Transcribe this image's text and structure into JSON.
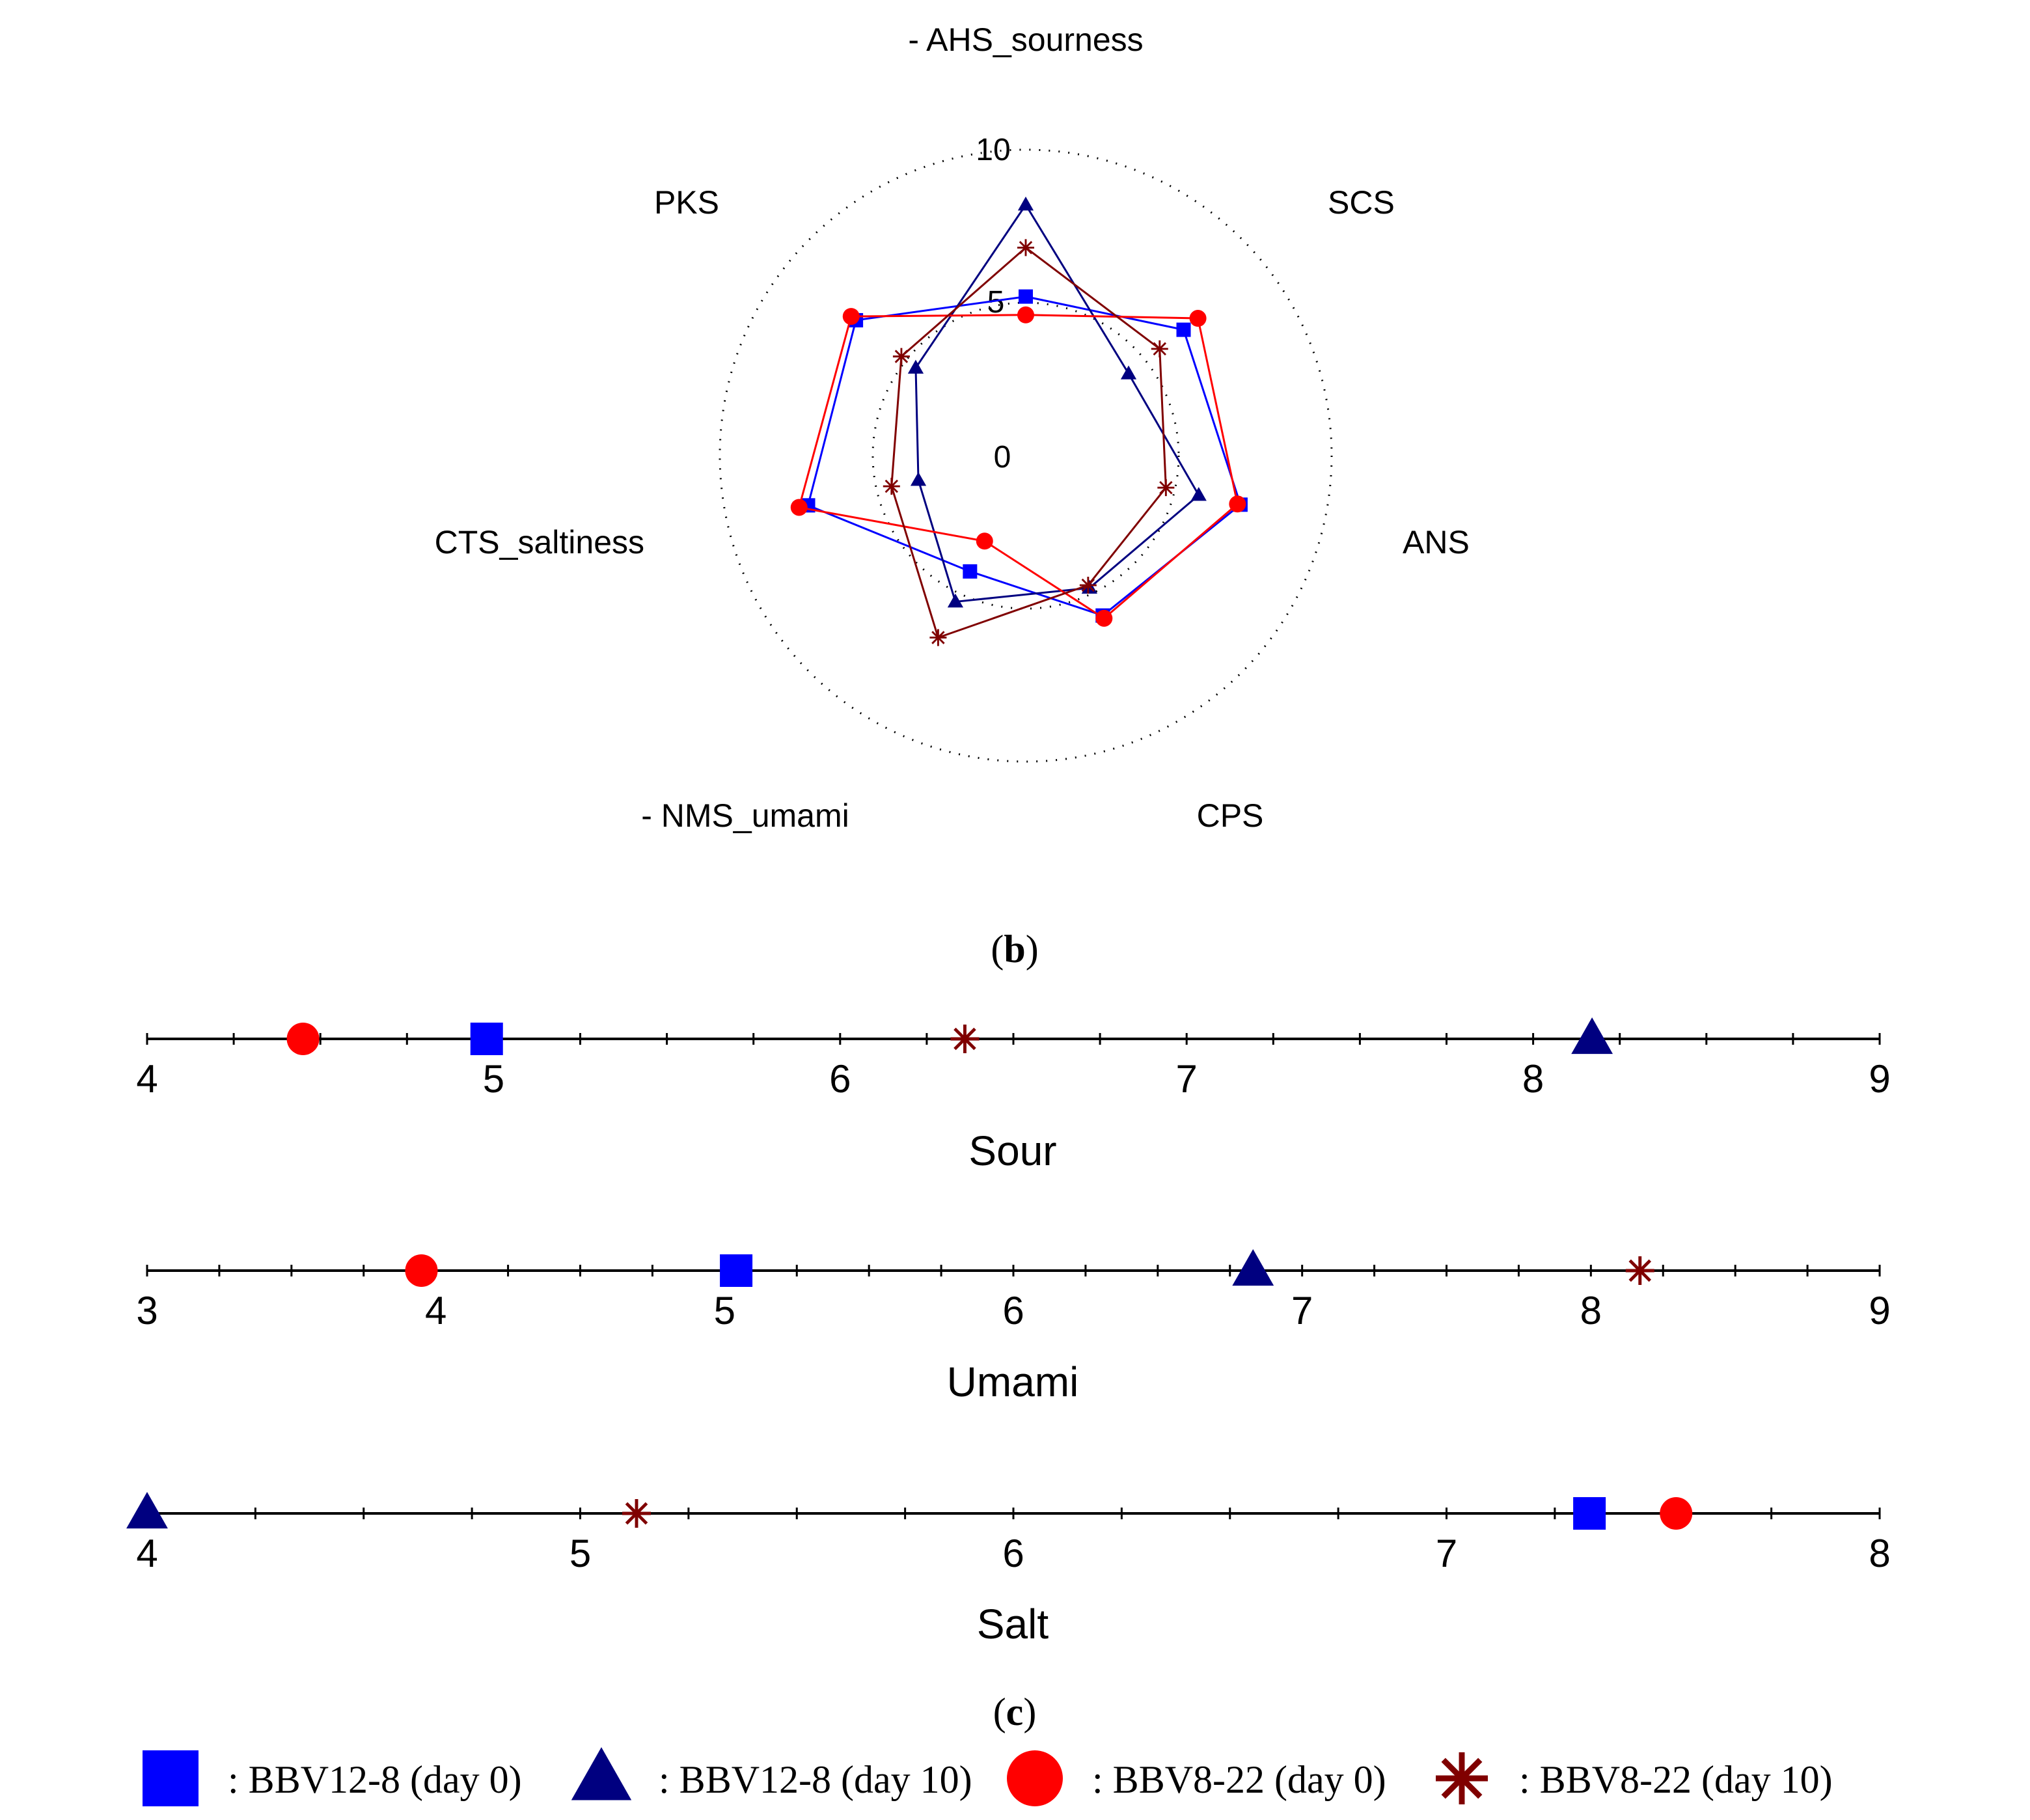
{
  "colors": {
    "bbv12_day0": "#0000ff",
    "bbv12_day10": "#000080",
    "bbv8_day0": "#ff0000",
    "bbv8_day10": "#800000",
    "axis": "#000000"
  },
  "panels": {
    "b_label": "b",
    "c_label": "c"
  },
  "legend": {
    "items": [
      {
        "series": "bbv12_day0",
        "marker": "square",
        "label": ": BBV12-8 (day 0)"
      },
      {
        "series": "bbv12_day10",
        "marker": "triangle",
        "label": ": BBV12-8 (day 10)"
      },
      {
        "series": "bbv8_day0",
        "marker": "circle",
        "label": ": BBV8-22 (day 0)"
      },
      {
        "series": "bbv8_day10",
        "marker": "star",
        "label": ": BBV8-22 (day 10)"
      }
    ]
  },
  "chart_data": [
    {
      "type": "radar",
      "panel": "b",
      "axes": [
        "- AHS_sourness",
        "SCS",
        "ANS",
        "CPS",
        "- NMS_umami",
        "CTS_saltiness",
        "PKS"
      ],
      "range": [
        0,
        10
      ],
      "ring_labels": [
        "0",
        "5",
        "10"
      ],
      "series": [
        {
          "key": "bbv12_day0",
          "name": "BBV12-8 (day 0)",
          "marker": "square",
          "values": [
            5.2,
            6.6,
            7.2,
            5.8,
            4.2,
            7.3,
            7.1
          ]
        },
        {
          "key": "bbv12_day10",
          "name": "BBV12-8 (day 10)",
          "marker": "triangle",
          "values": [
            8.2,
            4.3,
            5.8,
            4.8,
            5.3,
            3.6,
            4.6
          ]
        },
        {
          "key": "bbv8_day0",
          "name": "BBV8-22 (day 0)",
          "marker": "circle",
          "values": [
            4.6,
            7.2,
            7.1,
            5.9,
            3.1,
            7.6,
            7.3
          ]
        },
        {
          "key": "bbv8_day10",
          "name": "BBV8-22 (day 10)",
          "marker": "star",
          "values": [
            6.8,
            5.6,
            4.7,
            4.7,
            6.6,
            4.5,
            5.2
          ]
        }
      ]
    },
    {
      "type": "dot-scale",
      "panel": "c",
      "title": "Sour",
      "range": [
        4,
        9
      ],
      "ticks": [
        4,
        5,
        6,
        7,
        8,
        9
      ],
      "minor_step": 0.5,
      "points": [
        {
          "key": "bbv8_day0",
          "marker": "circle",
          "value": 4.45
        },
        {
          "key": "bbv12_day0",
          "marker": "square",
          "value": 4.98
        },
        {
          "key": "bbv8_day10",
          "marker": "star",
          "value": 6.36
        },
        {
          "key": "bbv12_day10",
          "marker": "triangle",
          "value": 8.17
        }
      ]
    },
    {
      "type": "dot-scale",
      "panel": "c",
      "title": "Umami",
      "range": [
        3,
        9
      ],
      "ticks": [
        3,
        4,
        5,
        6,
        7,
        8,
        9
      ],
      "minor_step": 0.5,
      "points": [
        {
          "key": "bbv8_day0",
          "marker": "circle",
          "value": 3.95
        },
        {
          "key": "bbv12_day0",
          "marker": "square",
          "value": 5.04
        },
        {
          "key": "bbv12_day10",
          "marker": "triangle",
          "value": 6.83
        },
        {
          "key": "bbv8_day10",
          "marker": "star",
          "value": 8.17
        }
      ]
    },
    {
      "type": "dot-scale",
      "panel": "c",
      "title": "Salt",
      "range": [
        4,
        8
      ],
      "ticks": [
        4,
        5,
        6,
        7,
        8
      ],
      "minor_step": 0.5,
      "points": [
        {
          "key": "bbv12_day10",
          "marker": "triangle",
          "value": 4.0
        },
        {
          "key": "bbv8_day10",
          "marker": "star",
          "value": 5.13
        },
        {
          "key": "bbv12_day0",
          "marker": "square",
          "value": 7.33
        },
        {
          "key": "bbv8_day0",
          "marker": "circle",
          "value": 7.53
        }
      ]
    }
  ]
}
